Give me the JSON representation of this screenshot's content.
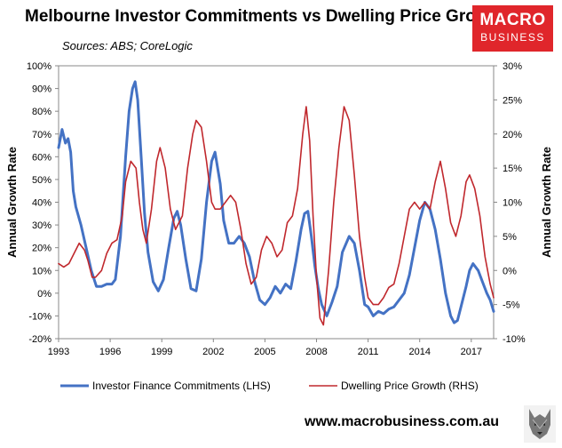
{
  "header": {
    "title": "Melbourne Investor Commitments vs Dwelling Price Growth",
    "source": "Sources: ABS; CoreLogic"
  },
  "logo": {
    "line1": "MACRO",
    "line2": "BUSINESS",
    "color": "#e0262b"
  },
  "footer": {
    "url": "www.macrobusiness.com.au"
  },
  "chart_data": {
    "type": "line",
    "title": "Melbourne Investor Commitments vs Dwelling Price Growth",
    "xlabel": "",
    "ylabel_left": "Annual Growth Rate",
    "ylabel_right": "Annual Growth Rate",
    "xlim": [
      1993,
      2018.3
    ],
    "ylim_left": [
      -20,
      100
    ],
    "ylim_right": [
      -10,
      30
    ],
    "x_ticks": [
      "1993",
      "1996",
      "1999",
      "2002",
      "2005",
      "2008",
      "2011",
      "2014",
      "2017"
    ],
    "y_ticks_left": [
      "100%",
      "90%",
      "80%",
      "70%",
      "60%",
      "50%",
      "40%",
      "30%",
      "20%",
      "10%",
      "0%",
      "-10%",
      "-20%"
    ],
    "y_ticks_right": [
      "30%",
      "25%",
      "20%",
      "15%",
      "10%",
      "5%",
      "0%",
      "-5%",
      "-10%"
    ],
    "legend_position": "bottom",
    "series": [
      {
        "name": "Investor Finance Commitments (LHS)",
        "axis": "left",
        "color": "#4472c4",
        "points": [
          [
            1993.0,
            64
          ],
          [
            1993.2,
            72
          ],
          [
            1993.4,
            66
          ],
          [
            1993.55,
            68
          ],
          [
            1993.7,
            62
          ],
          [
            1993.85,
            45
          ],
          [
            1994.0,
            38
          ],
          [
            1994.3,
            30
          ],
          [
            1994.6,
            20
          ],
          [
            1994.9,
            10
          ],
          [
            1995.2,
            3
          ],
          [
            1995.5,
            3
          ],
          [
            1995.8,
            4
          ],
          [
            1996.1,
            4
          ],
          [
            1996.3,
            6
          ],
          [
            1996.6,
            25
          ],
          [
            1996.9,
            60
          ],
          [
            1997.1,
            80
          ],
          [
            1997.3,
            90
          ],
          [
            1997.45,
            93
          ],
          [
            1997.6,
            85
          ],
          [
            1997.8,
            60
          ],
          [
            1998.0,
            35
          ],
          [
            1998.2,
            18
          ],
          [
            1998.5,
            5
          ],
          [
            1998.8,
            1
          ],
          [
            1999.1,
            6
          ],
          [
            1999.4,
            20
          ],
          [
            1999.7,
            33
          ],
          [
            1999.9,
            36
          ],
          [
            2000.1,
            30
          ],
          [
            2000.4,
            15
          ],
          [
            2000.7,
            2
          ],
          [
            2001.0,
            1
          ],
          [
            2001.3,
            15
          ],
          [
            2001.6,
            40
          ],
          [
            2001.9,
            58
          ],
          [
            2002.1,
            62
          ],
          [
            2002.4,
            48
          ],
          [
            2002.6,
            32
          ],
          [
            2002.9,
            22
          ],
          [
            2003.2,
            22
          ],
          [
            2003.5,
            25
          ],
          [
            2003.8,
            22
          ],
          [
            2004.1,
            16
          ],
          [
            2004.4,
            5
          ],
          [
            2004.7,
            -3
          ],
          [
            2005.0,
            -5
          ],
          [
            2005.3,
            -2
          ],
          [
            2005.6,
            3
          ],
          [
            2005.9,
            0
          ],
          [
            2006.2,
            4
          ],
          [
            2006.5,
            2
          ],
          [
            2006.8,
            14
          ],
          [
            2007.1,
            28
          ],
          [
            2007.3,
            35
          ],
          [
            2007.5,
            36
          ],
          [
            2007.7,
            25
          ],
          [
            2007.9,
            12
          ],
          [
            2008.1,
            2
          ],
          [
            2008.3,
            -5
          ],
          [
            2008.6,
            -10
          ],
          [
            2008.9,
            -4
          ],
          [
            2009.2,
            3
          ],
          [
            2009.5,
            18
          ],
          [
            2009.9,
            25
          ],
          [
            2010.2,
            22
          ],
          [
            2010.5,
            10
          ],
          [
            2010.8,
            -5
          ],
          [
            2011.0,
            -6
          ],
          [
            2011.3,
            -10
          ],
          [
            2011.6,
            -8
          ],
          [
            2011.9,
            -9
          ],
          [
            2012.2,
            -7
          ],
          [
            2012.5,
            -6
          ],
          [
            2012.8,
            -3
          ],
          [
            2013.1,
            0
          ],
          [
            2013.4,
            8
          ],
          [
            2013.7,
            20
          ],
          [
            2014.0,
            32
          ],
          [
            2014.3,
            40
          ],
          [
            2014.6,
            37
          ],
          [
            2014.9,
            28
          ],
          [
            2015.2,
            15
          ],
          [
            2015.5,
            0
          ],
          [
            2015.8,
            -10
          ],
          [
            2016.0,
            -13
          ],
          [
            2016.2,
            -12
          ],
          [
            2016.4,
            -6
          ],
          [
            2016.7,
            3
          ],
          [
            2016.9,
            10
          ],
          [
            2017.1,
            13
          ],
          [
            2017.4,
            10
          ],
          [
            2017.7,
            4
          ],
          [
            2017.9,
            0
          ],
          [
            2018.1,
            -3
          ],
          [
            2018.3,
            -8
          ]
        ]
      },
      {
        "name": "Dwelling Price Growth (RHS)",
        "axis": "right",
        "color": "#c0282d",
        "points": [
          [
            1993.0,
            1
          ],
          [
            1993.3,
            0.5
          ],
          [
            1993.6,
            1
          ],
          [
            1993.9,
            2.5
          ],
          [
            1994.2,
            4
          ],
          [
            1994.5,
            3
          ],
          [
            1994.7,
            1.5
          ],
          [
            1994.95,
            -1
          ],
          [
            1995.15,
            -1
          ],
          [
            1995.5,
            0
          ],
          [
            1995.8,
            2.5
          ],
          [
            1996.1,
            4
          ],
          [
            1996.4,
            4.5
          ],
          [
            1996.7,
            8
          ],
          [
            1996.9,
            13
          ],
          [
            1997.2,
            16
          ],
          [
            1997.5,
            15
          ],
          [
            1997.7,
            10
          ],
          [
            1997.9,
            6
          ],
          [
            1998.1,
            4
          ],
          [
            1998.4,
            9
          ],
          [
            1998.7,
            16
          ],
          [
            1998.9,
            18
          ],
          [
            1999.2,
            15
          ],
          [
            1999.5,
            9
          ],
          [
            1999.8,
            6
          ],
          [
            2000.2,
            8
          ],
          [
            2000.5,
            15
          ],
          [
            2000.8,
            20
          ],
          [
            2001.0,
            22
          ],
          [
            2001.3,
            21
          ],
          [
            2001.6,
            16
          ],
          [
            2001.9,
            10
          ],
          [
            2002.1,
            9
          ],
          [
            2002.4,
            9
          ],
          [
            2002.7,
            10
          ],
          [
            2003.0,
            11
          ],
          [
            2003.3,
            10
          ],
          [
            2003.6,
            6
          ],
          [
            2003.9,
            1
          ],
          [
            2004.2,
            -2
          ],
          [
            2004.5,
            -1
          ],
          [
            2004.8,
            3
          ],
          [
            2005.1,
            5
          ],
          [
            2005.4,
            4
          ],
          [
            2005.7,
            2
          ],
          [
            2006.0,
            3
          ],
          [
            2006.3,
            7
          ],
          [
            2006.6,
            8
          ],
          [
            2006.9,
            12
          ],
          [
            2007.2,
            20
          ],
          [
            2007.4,
            24
          ],
          [
            2007.6,
            19
          ],
          [
            2007.8,
            8
          ],
          [
            2008.0,
            -1
          ],
          [
            2008.2,
            -7
          ],
          [
            2008.4,
            -8
          ],
          [
            2008.7,
            0
          ],
          [
            2009.0,
            10
          ],
          [
            2009.3,
            18
          ],
          [
            2009.6,
            24
          ],
          [
            2009.9,
            22
          ],
          [
            2010.2,
            14
          ],
          [
            2010.5,
            5
          ],
          [
            2010.8,
            -1
          ],
          [
            2011.0,
            -4
          ],
          [
            2011.3,
            -5
          ],
          [
            2011.6,
            -5
          ],
          [
            2011.9,
            -4
          ],
          [
            2012.2,
            -2.5
          ],
          [
            2012.5,
            -2
          ],
          [
            2012.8,
            1
          ],
          [
            2013.1,
            5
          ],
          [
            2013.4,
            9
          ],
          [
            2013.7,
            10
          ],
          [
            2014.0,
            9
          ],
          [
            2014.3,
            10
          ],
          [
            2014.6,
            9
          ],
          [
            2014.9,
            13
          ],
          [
            2015.2,
            16
          ],
          [
            2015.5,
            12
          ],
          [
            2015.8,
            7
          ],
          [
            2016.1,
            5
          ],
          [
            2016.4,
            8
          ],
          [
            2016.7,
            13
          ],
          [
            2016.9,
            14
          ],
          [
            2017.2,
            12
          ],
          [
            2017.5,
            8
          ],
          [
            2017.8,
            2
          ],
          [
            2018.1,
            -2
          ],
          [
            2018.3,
            -4
          ]
        ]
      }
    ]
  }
}
